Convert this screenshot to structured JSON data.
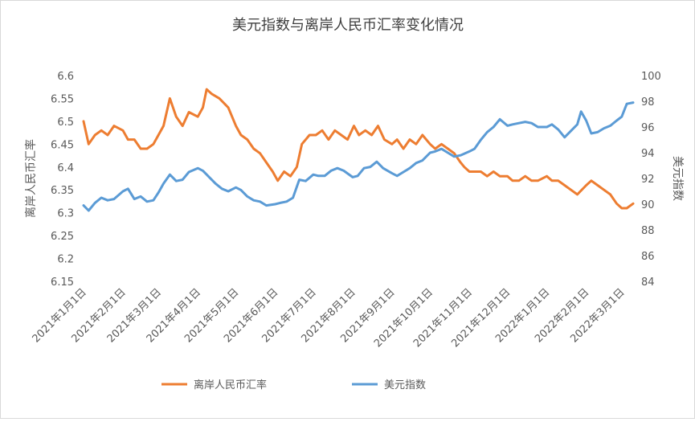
{
  "chart_data": {
    "type": "line",
    "title": "美元指数与离岸人民币汇率变化情况",
    "y_left_label": "离岸人民币汇率",
    "y_right_label": "美元指数",
    "y_left_lim": [
      6.15,
      6.6
    ],
    "y_left_ticks": [
      "6.15",
      "6.2",
      "6.25",
      "6.3",
      "6.35",
      "6.4",
      "6.45",
      "6.5",
      "6.55",
      "6.6"
    ],
    "y_right_lim": [
      84,
      100
    ],
    "y_right_ticks": [
      "84",
      "86",
      "88",
      "90",
      "92",
      "94",
      "96",
      "98",
      "100"
    ],
    "x_ticks": [
      "2021年1月1日",
      "2021年2月1日",
      "2021年3月1日",
      "2021年4月1日",
      "2021年5月1日",
      "2021年6月1日",
      "2021年7月1日",
      "2021年8月1日",
      "2021年9月1日",
      "2021年10月1日",
      "2021年11月1日",
      "2021年12月1日",
      "2022年1月1日",
      "2022年2月1日",
      "2022年3月1日"
    ],
    "grid": false,
    "legend_position": "bottom",
    "series": [
      {
        "name": "离岸人民币汇率",
        "axis": "left",
        "color": "#ed7d31",
        "points": [
          [
            "2021-01-01",
            6.5
          ],
          [
            "2021-01-05",
            6.45
          ],
          [
            "2021-01-10",
            6.47
          ],
          [
            "2021-01-15",
            6.48
          ],
          [
            "2021-01-20",
            6.47
          ],
          [
            "2021-01-25",
            6.49
          ],
          [
            "2021-02-01",
            6.48
          ],
          [
            "2021-02-05",
            6.46
          ],
          [
            "2021-02-10",
            6.46
          ],
          [
            "2021-02-15",
            6.44
          ],
          [
            "2021-02-20",
            6.44
          ],
          [
            "2021-02-25",
            6.45
          ],
          [
            "2021-03-01",
            6.47
          ],
          [
            "2021-03-05",
            6.49
          ],
          [
            "2021-03-10",
            6.55
          ],
          [
            "2021-03-15",
            6.51
          ],
          [
            "2021-03-20",
            6.49
          ],
          [
            "2021-03-25",
            6.52
          ],
          [
            "2021-04-01",
            6.51
          ],
          [
            "2021-04-05",
            6.53
          ],
          [
            "2021-04-08",
            6.57
          ],
          [
            "2021-04-12",
            6.56
          ],
          [
            "2021-04-18",
            6.55
          ],
          [
            "2021-04-25",
            6.53
          ],
          [
            "2021-05-01",
            6.49
          ],
          [
            "2021-05-05",
            6.47
          ],
          [
            "2021-05-10",
            6.46
          ],
          [
            "2021-05-15",
            6.44
          ],
          [
            "2021-05-20",
            6.43
          ],
          [
            "2021-05-25",
            6.41
          ],
          [
            "2021-05-30",
            6.39
          ],
          [
            "2021-06-03",
            6.37
          ],
          [
            "2021-06-08",
            6.39
          ],
          [
            "2021-06-13",
            6.38
          ],
          [
            "2021-06-18",
            6.4
          ],
          [
            "2021-06-22",
            6.45
          ],
          [
            "2021-06-28",
            6.47
          ],
          [
            "2021-07-03",
            6.47
          ],
          [
            "2021-07-08",
            6.48
          ],
          [
            "2021-07-13",
            6.46
          ],
          [
            "2021-07-18",
            6.48
          ],
          [
            "2021-07-23",
            6.47
          ],
          [
            "2021-07-28",
            6.46
          ],
          [
            "2021-08-02",
            6.49
          ],
          [
            "2021-08-06",
            6.47
          ],
          [
            "2021-08-11",
            6.48
          ],
          [
            "2021-08-16",
            6.47
          ],
          [
            "2021-08-21",
            6.49
          ],
          [
            "2021-08-26",
            6.46
          ],
          [
            "2021-09-01",
            6.45
          ],
          [
            "2021-09-05",
            6.46
          ],
          [
            "2021-09-10",
            6.44
          ],
          [
            "2021-09-15",
            6.46
          ],
          [
            "2021-09-20",
            6.45
          ],
          [
            "2021-09-25",
            6.47
          ],
          [
            "2021-10-01",
            6.45
          ],
          [
            "2021-10-05",
            6.44
          ],
          [
            "2021-10-10",
            6.45
          ],
          [
            "2021-10-15",
            6.44
          ],
          [
            "2021-10-20",
            6.43
          ],
          [
            "2021-10-25",
            6.41
          ],
          [
            "2021-10-28",
            6.4
          ],
          [
            "2021-11-01",
            6.39
          ],
          [
            "2021-11-05",
            6.39
          ],
          [
            "2021-11-10",
            6.39
          ],
          [
            "2021-11-15",
            6.38
          ],
          [
            "2021-11-20",
            6.39
          ],
          [
            "2021-11-25",
            6.38
          ],
          [
            "2021-12-01",
            6.38
          ],
          [
            "2021-12-05",
            6.37
          ],
          [
            "2021-12-10",
            6.37
          ],
          [
            "2021-12-15",
            6.38
          ],
          [
            "2021-12-20",
            6.37
          ],
          [
            "2021-12-25",
            6.37
          ],
          [
            "2022-01-01",
            6.38
          ],
          [
            "2022-01-05",
            6.37
          ],
          [
            "2022-01-10",
            6.37
          ],
          [
            "2022-01-15",
            6.36
          ],
          [
            "2022-01-20",
            6.35
          ],
          [
            "2022-01-25",
            6.34
          ],
          [
            "2022-02-01",
            6.36
          ],
          [
            "2022-02-05",
            6.37
          ],
          [
            "2022-02-10",
            6.36
          ],
          [
            "2022-02-15",
            6.35
          ],
          [
            "2022-02-20",
            6.34
          ],
          [
            "2022-02-25",
            6.32
          ],
          [
            "2022-03-01",
            6.31
          ],
          [
            "2022-03-05",
            6.31
          ],
          [
            "2022-03-10",
            6.32
          ]
        ]
      },
      {
        "name": "美元指数",
        "axis": "right",
        "color": "#5b9bd5",
        "points": [
          [
            "2021-01-01",
            89.9
          ],
          [
            "2021-01-05",
            89.5
          ],
          [
            "2021-01-10",
            90.1
          ],
          [
            "2021-01-15",
            90.5
          ],
          [
            "2021-01-20",
            90.3
          ],
          [
            "2021-01-25",
            90.4
          ],
          [
            "2021-02-01",
            91.0
          ],
          [
            "2021-02-05",
            91.2
          ],
          [
            "2021-02-10",
            90.4
          ],
          [
            "2021-02-15",
            90.6
          ],
          [
            "2021-02-20",
            90.2
          ],
          [
            "2021-02-25",
            90.3
          ],
          [
            "2021-03-01",
            90.9
          ],
          [
            "2021-03-05",
            91.6
          ],
          [
            "2021-03-10",
            92.3
          ],
          [
            "2021-03-15",
            91.8
          ],
          [
            "2021-03-20",
            91.9
          ],
          [
            "2021-03-25",
            92.5
          ],
          [
            "2021-04-01",
            92.8
          ],
          [
            "2021-04-05",
            92.6
          ],
          [
            "2021-04-10",
            92.1
          ],
          [
            "2021-04-15",
            91.6
          ],
          [
            "2021-04-20",
            91.2
          ],
          [
            "2021-04-25",
            91.0
          ],
          [
            "2021-05-01",
            91.3
          ],
          [
            "2021-05-05",
            91.1
          ],
          [
            "2021-05-10",
            90.6
          ],
          [
            "2021-05-15",
            90.3
          ],
          [
            "2021-05-20",
            90.2
          ],
          [
            "2021-05-25",
            89.9
          ],
          [
            "2021-06-01",
            90.0
          ],
          [
            "2021-06-05",
            90.1
          ],
          [
            "2021-06-10",
            90.2
          ],
          [
            "2021-06-15",
            90.5
          ],
          [
            "2021-06-20",
            91.9
          ],
          [
            "2021-06-25",
            91.8
          ],
          [
            "2021-07-01",
            92.3
          ],
          [
            "2021-07-05",
            92.2
          ],
          [
            "2021-07-10",
            92.2
          ],
          [
            "2021-07-15",
            92.6
          ],
          [
            "2021-07-20",
            92.8
          ],
          [
            "2021-07-25",
            92.6
          ],
          [
            "2021-08-01",
            92.1
          ],
          [
            "2021-08-05",
            92.2
          ],
          [
            "2021-08-10",
            92.8
          ],
          [
            "2021-08-15",
            92.9
          ],
          [
            "2021-08-20",
            93.3
          ],
          [
            "2021-08-25",
            92.8
          ],
          [
            "2021-09-01",
            92.4
          ],
          [
            "2021-09-05",
            92.2
          ],
          [
            "2021-09-10",
            92.5
          ],
          [
            "2021-09-15",
            92.8
          ],
          [
            "2021-09-20",
            93.2
          ],
          [
            "2021-09-25",
            93.4
          ],
          [
            "2021-10-01",
            94.0
          ],
          [
            "2021-10-05",
            94.1
          ],
          [
            "2021-10-10",
            94.3
          ],
          [
            "2021-10-15",
            94.0
          ],
          [
            "2021-10-20",
            93.7
          ],
          [
            "2021-10-25",
            93.8
          ],
          [
            "2021-11-01",
            94.1
          ],
          [
            "2021-11-05",
            94.3
          ],
          [
            "2021-11-10",
            95.0
          ],
          [
            "2021-11-15",
            95.6
          ],
          [
            "2021-11-20",
            96.0
          ],
          [
            "2021-11-25",
            96.6
          ],
          [
            "2021-12-01",
            96.1
          ],
          [
            "2021-12-05",
            96.2
          ],
          [
            "2021-12-10",
            96.3
          ],
          [
            "2021-12-15",
            96.4
          ],
          [
            "2021-12-20",
            96.3
          ],
          [
            "2021-12-25",
            96.0
          ],
          [
            "2022-01-01",
            96.0
          ],
          [
            "2022-01-05",
            96.2
          ],
          [
            "2022-01-10",
            95.8
          ],
          [
            "2022-01-15",
            95.2
          ],
          [
            "2022-01-20",
            95.7
          ],
          [
            "2022-01-25",
            96.2
          ],
          [
            "2022-01-28",
            97.2
          ],
          [
            "2022-02-01",
            96.5
          ],
          [
            "2022-02-05",
            95.5
          ],
          [
            "2022-02-10",
            95.6
          ],
          [
            "2022-02-15",
            95.9
          ],
          [
            "2022-02-20",
            96.1
          ],
          [
            "2022-02-25",
            96.5
          ],
          [
            "2022-03-01",
            96.8
          ],
          [
            "2022-03-05",
            97.8
          ],
          [
            "2022-03-10",
            97.9
          ]
        ]
      }
    ]
  },
  "legend": {
    "items": [
      {
        "label": "离岸人民币汇率",
        "color": "#ed7d31"
      },
      {
        "label": "美元指数",
        "color": "#5b9bd5"
      }
    ]
  }
}
